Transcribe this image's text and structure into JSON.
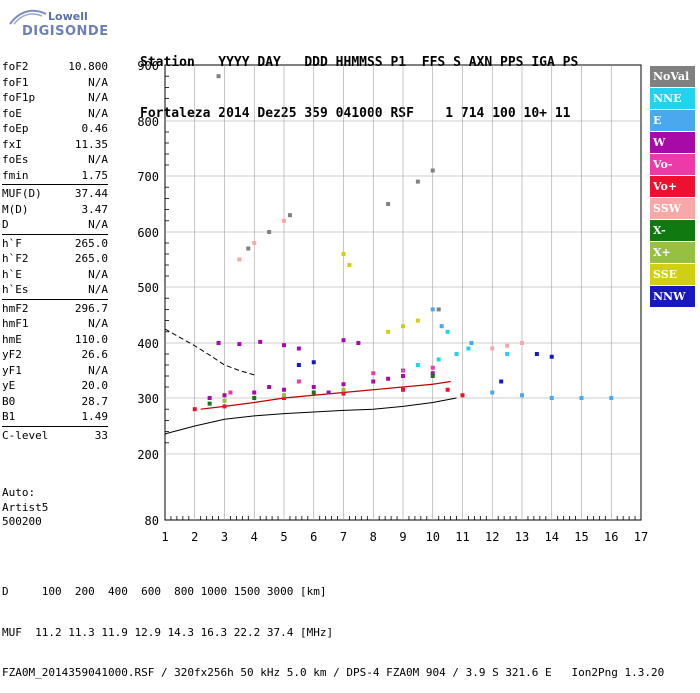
{
  "logo": {
    "line1": "Lowell",
    "line2": "DIGISONDE"
  },
  "header": {
    "line1": "Station   YYYY DAY   DDD HHMMSS P1  FFS S AXN PPS IGA PS",
    "line2": "Fortaleza 2014 Dez25 359 041000 RSF    1 714 100 10+ 11"
  },
  "parameters": [
    [
      {
        "name": "foF2",
        "value": "10.800"
      },
      {
        "name": "foF1",
        "value": "N/A"
      },
      {
        "name": "foF1p",
        "value": "N/A"
      },
      {
        "name": "foE",
        "value": "N/A"
      },
      {
        "name": "foEp",
        "value": "0.46"
      },
      {
        "name": "fxI",
        "value": "11.35"
      },
      {
        "name": "foEs",
        "value": "N/A"
      },
      {
        "name": "fmin",
        "value": "1.75"
      }
    ],
    [
      {
        "name": "MUF(D)",
        "value": "37.44"
      },
      {
        "name": "M(D)",
        "value": "3.47"
      },
      {
        "name": "D",
        "value": "N/A"
      }
    ],
    [
      {
        "name": "h`F",
        "value": "265.0"
      },
      {
        "name": "h`F2",
        "value": "265.0"
      },
      {
        "name": "h`E",
        "value": "N/A"
      },
      {
        "name": "h`Es",
        "value": "N/A"
      }
    ],
    [
      {
        "name": "hmF2",
        "value": "296.7"
      },
      {
        "name": "hmF1",
        "value": "N/A"
      },
      {
        "name": "hmE",
        "value": "110.0"
      },
      {
        "name": "yF2",
        "value": "26.6"
      },
      {
        "name": "yF1",
        "value": "N/A"
      },
      {
        "name": "yE",
        "value": "20.0"
      },
      {
        "name": "B0",
        "value": "28.7"
      },
      {
        "name": "B1",
        "value": "1.49"
      }
    ],
    [
      {
        "name": "C-level",
        "value": "33"
      }
    ]
  ],
  "auto": {
    "line1": "Auto:",
    "line2": "Artist5",
    "line3": "500200"
  },
  "legend": [
    {
      "label": "NoVal",
      "color": "#808080"
    },
    {
      "label": "NNE",
      "color": "#22d3f0"
    },
    {
      "label": "E",
      "color": "#4aa8ee"
    },
    {
      "label": "W",
      "color": "#a80aa8"
    },
    {
      "label": "Vo-",
      "color": "#ee3aa8"
    },
    {
      "label": "Vo+",
      "color": "#ee1030"
    },
    {
      "label": "SSW",
      "color": "#f8a8a8"
    },
    {
      "label": "X-",
      "color": "#107a10"
    },
    {
      "label": "X+",
      "color": "#98c040"
    },
    {
      "label": "SSE",
      "color": "#d0d010"
    },
    {
      "label": "NNW",
      "color": "#1818c0"
    }
  ],
  "footer": {
    "line1": "D     100  200  400  600  800 1000 1500 3000 [km]",
    "line2": "MUF  11.2 11.3 11.9 12.9 14.3 16.3 22.2 37.4 [MHz]",
    "line3": "FZA0M_2014359041000.RSF / 320fx256h 50 kHz 5.0 km / DPS-4 FZA0M 904 / 3.9 S 321.6 E   Ion2Png 1.3.20"
  },
  "chart_data": {
    "type": "scatter",
    "xlim": [
      1,
      17
    ],
    "ylim": [
      80,
      900
    ],
    "xticks": [
      1,
      2,
      3,
      4,
      5,
      6,
      7,
      8,
      9,
      10,
      11,
      12,
      13,
      14,
      15,
      16,
      17
    ],
    "yticks": [
      80,
      200,
      300,
      400,
      500,
      600,
      700,
      800,
      900
    ],
    "grid": true,
    "series": [
      {
        "name": "W",
        "color": "#a80aa8",
        "points": [
          [
            2.8,
            400
          ],
          [
            3.5,
            398
          ],
          [
            4.2,
            402
          ],
          [
            5.0,
            396
          ],
          [
            5.5,
            390
          ],
          [
            7.0,
            405
          ],
          [
            7.5,
            400
          ],
          [
            2.5,
            300
          ],
          [
            3.0,
            305
          ],
          [
            4.0,
            310
          ],
          [
            5.0,
            315
          ],
          [
            6.0,
            320
          ],
          [
            7.0,
            325
          ],
          [
            8.0,
            330
          ],
          [
            9.0,
            340
          ],
          [
            10.0,
            345
          ],
          [
            4.5,
            320
          ],
          [
            8.5,
            335
          ],
          [
            6.5,
            310
          ]
        ]
      },
      {
        "name": "NNE",
        "color": "#22d3f0",
        "points": [
          [
            9.5,
            360
          ],
          [
            10.2,
            370
          ],
          [
            10.8,
            380
          ],
          [
            11.2,
            390
          ],
          [
            12.5,
            380
          ],
          [
            10.5,
            420
          ]
        ]
      },
      {
        "name": "E",
        "color": "#4aa8ee",
        "points": [
          [
            10.3,
            430
          ],
          [
            11.3,
            400
          ],
          [
            12.0,
            310
          ],
          [
            13.0,
            305
          ],
          [
            14.0,
            300
          ],
          [
            15.0,
            300
          ],
          [
            16.0,
            300
          ],
          [
            10.0,
            460
          ]
        ]
      },
      {
        "name": "Vo-",
        "color": "#ee3aa8",
        "points": [
          [
            3.2,
            310
          ],
          [
            5.5,
            330
          ],
          [
            8.0,
            345
          ],
          [
            9.0,
            350
          ],
          [
            10.0,
            355
          ]
        ]
      },
      {
        "name": "Vo+",
        "color": "#ee1030",
        "points": [
          [
            2.0,
            280
          ],
          [
            3.0,
            285
          ],
          [
            5.0,
            300
          ],
          [
            7.0,
            308
          ],
          [
            9.0,
            315
          ],
          [
            10.5,
            315
          ],
          [
            11.0,
            305
          ]
        ]
      },
      {
        "name": "SSW",
        "color": "#f8a8a8",
        "points": [
          [
            3.5,
            550
          ],
          [
            4.0,
            580
          ],
          [
            4.5,
            600
          ],
          [
            5.0,
            620
          ],
          [
            12.0,
            390
          ],
          [
            12.5,
            395
          ],
          [
            13.0,
            400
          ]
        ]
      },
      {
        "name": "X-",
        "color": "#107a10",
        "points": [
          [
            2.5,
            290
          ],
          [
            4.0,
            300
          ],
          [
            6.0,
            310
          ],
          [
            10.0,
            340
          ]
        ]
      },
      {
        "name": "X+",
        "color": "#98c040",
        "points": [
          [
            3.0,
            295
          ],
          [
            5.0,
            305
          ],
          [
            7.0,
            315
          ]
        ]
      },
      {
        "name": "SSE",
        "color": "#d0d010",
        "points": [
          [
            7.2,
            540
          ],
          [
            7.0,
            560
          ],
          [
            8.5,
            420
          ],
          [
            9.0,
            430
          ],
          [
            9.5,
            440
          ]
        ]
      },
      {
        "name": "NNW",
        "color": "#1818c0",
        "points": [
          [
            12.3,
            330
          ],
          [
            13.5,
            380
          ],
          [
            14.0,
            375
          ],
          [
            5.5,
            360
          ],
          [
            6.0,
            365
          ]
        ]
      },
      {
        "name": "NoVal",
        "color": "#808080",
        "points": [
          [
            3.8,
            570
          ],
          [
            4.5,
            600
          ],
          [
            5.2,
            630
          ],
          [
            8.5,
            650
          ],
          [
            9.5,
            690
          ],
          [
            10.0,
            710
          ],
          [
            2.8,
            880
          ],
          [
            10.2,
            460
          ]
        ]
      }
    ]
  }
}
